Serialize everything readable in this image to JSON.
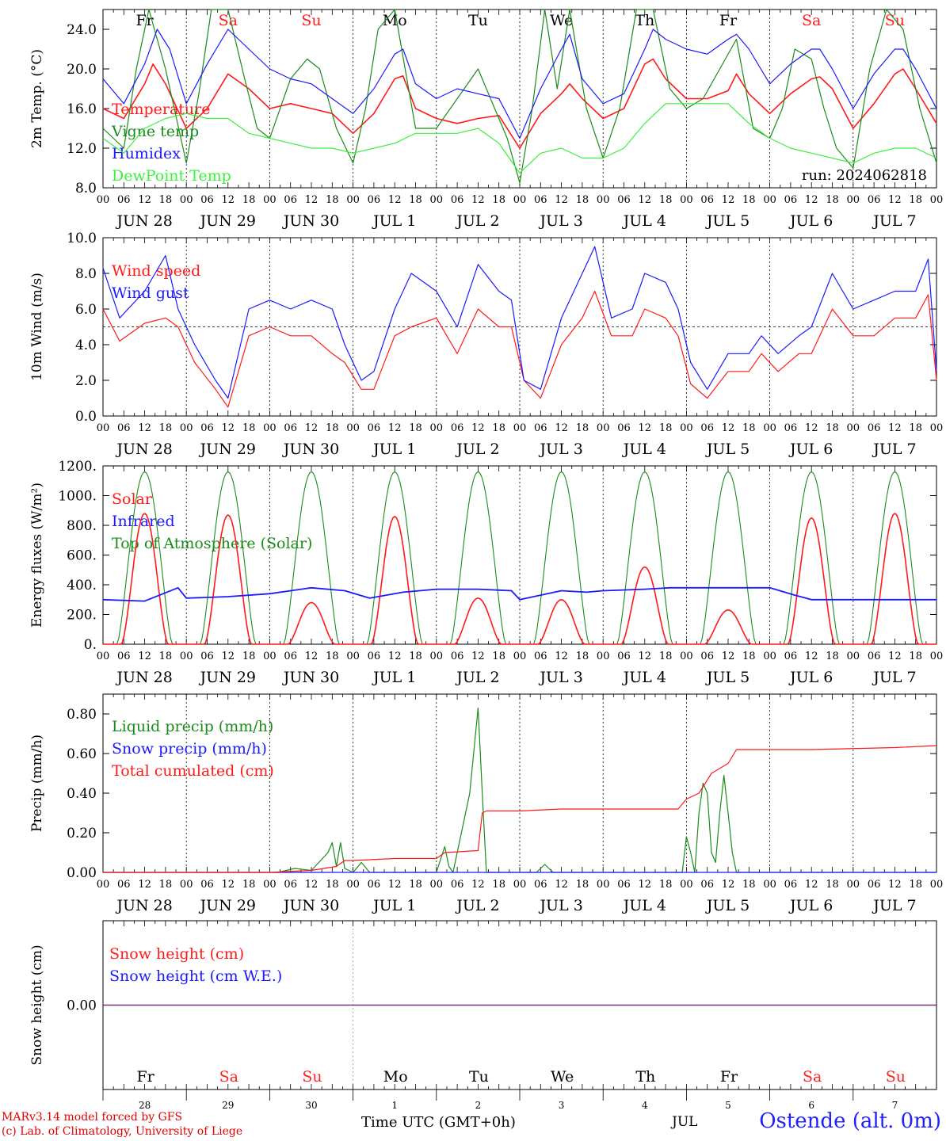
{
  "footer": {
    "credit_line1": "MARv3.14 model forced by GFS",
    "credit_line2": "(c) Lab. of Climatology, University of Liege",
    "time_label": "Time UTC (GMT+0h)",
    "month_label": "JUL",
    "station": "Ostende (alt. 0m)"
  },
  "axis_common": {
    "hour_ticks": [
      "00",
      "06",
      "12",
      "18"
    ],
    "hour_end": "00",
    "date_labels": [
      "JUN 28",
      "JUN 29",
      "JUN 30",
      "JUL  1",
      "JUL  2",
      "JUL  3",
      "JUL  4",
      "JUL  5",
      "JUL  6",
      "JUL  7"
    ],
    "weekdays": [
      "Fr",
      "Sa",
      "Su",
      "Mo",
      "Tu",
      "We",
      "Th",
      "Fr",
      "Sa",
      "Su"
    ],
    "weekend_color": "#ff2020",
    "weekday_color": "#000000",
    "weekend_days": [
      "Sa",
      "Su"
    ]
  },
  "bottom_axis": {
    "day_numbers": [
      "28",
      "29",
      "30",
      "1",
      "2",
      "3",
      "4",
      "5",
      "6",
      "7"
    ]
  },
  "chart_data": [
    {
      "type": "line",
      "ylabel": "2m Temp. (°C)",
      "ylim": [
        8,
        26
      ],
      "yticks": [
        "8.0",
        "12.0",
        "16.0",
        "20.0",
        "24.0"
      ],
      "xrange_days": [
        0,
        10
      ],
      "annotation": "run: 2024062818",
      "legend_placement": "top-left",
      "series": [
        {
          "name": "Temperature",
          "color": "#ff1a1a",
          "x": [
            0,
            0.25,
            0.5,
            0.6,
            0.75,
            1,
            1.25,
            1.5,
            1.75,
            2,
            2.25,
            2.5,
            2.75,
            3,
            3.25,
            3.5,
            3.6,
            3.75,
            4,
            4.25,
            4.5,
            4.75,
            5,
            5.25,
            5.5,
            5.6,
            5.75,
            6,
            6.25,
            6.5,
            6.6,
            6.75,
            7,
            7.25,
            7.5,
            7.6,
            7.75,
            8,
            8.25,
            8.5,
            8.6,
            8.75,
            9,
            9.25,
            9.5,
            9.6,
            9.75,
            10
          ],
          "y": [
            16.0,
            15.0,
            18.5,
            20.5,
            18.5,
            14.0,
            16.0,
            19.5,
            18.0,
            16.0,
            16.5,
            16.0,
            15.5,
            13.5,
            15.5,
            19.0,
            19.3,
            16.0,
            15.0,
            14.5,
            15.0,
            15.3,
            12.0,
            15.5,
            17.5,
            18.5,
            17.0,
            15.0,
            16.0,
            20.5,
            21.0,
            19.0,
            17.0,
            17.0,
            17.8,
            19.5,
            17.5,
            15.5,
            17.5,
            19.0,
            19.2,
            18.0,
            14.0,
            16.5,
            19.5,
            20.0,
            18.0,
            14.5
          ]
        },
        {
          "name": "Vigne temp",
          "color": "#1a8c1a",
          "x": [
            0,
            0.25,
            0.4,
            0.55,
            0.75,
            1,
            1.15,
            1.3,
            1.5,
            1.7,
            1.85,
            2,
            2.25,
            2.45,
            2.6,
            2.8,
            3,
            3.15,
            3.3,
            3.5,
            3.75,
            4,
            4.25,
            4.5,
            4.7,
            4.85,
            5,
            5.15,
            5.3,
            5.45,
            5.6,
            5.8,
            6,
            6.2,
            6.4,
            6.6,
            6.8,
            7,
            7.2,
            7.4,
            7.6,
            7.8,
            8,
            8.15,
            8.3,
            8.5,
            8.65,
            8.8,
            9,
            9.2,
            9.4,
            9.6,
            9.8,
            10
          ],
          "y": [
            14.0,
            12.0,
            20.0,
            27.0,
            20.0,
            10.5,
            17.5,
            27.0,
            27.0,
            19.0,
            14.0,
            13.0,
            19.0,
            21.0,
            20.0,
            14.0,
            10.5,
            16.0,
            24.0,
            28.0,
            14.0,
            14.0,
            17.0,
            20.0,
            16.0,
            13.0,
            8.5,
            16.0,
            27.0,
            18.0,
            28.0,
            16.0,
            11.0,
            16.0,
            27.0,
            28.0,
            18.0,
            16.0,
            17.0,
            20.0,
            23.0,
            14.0,
            13.0,
            16.0,
            22.0,
            21.0,
            16.0,
            12.0,
            10.0,
            20.0,
            27.0,
            24.0,
            16.0,
            10.5
          ]
        },
        {
          "name": "Humidex",
          "color": "#1a1aff",
          "x": [
            0,
            0.25,
            0.5,
            0.65,
            0.8,
            1,
            1.25,
            1.5,
            1.75,
            2,
            2.25,
            2.5,
            2.75,
            3,
            3.25,
            3.5,
            3.6,
            3.75,
            4,
            4.25,
            4.5,
            4.75,
            5,
            5.25,
            5.5,
            5.6,
            5.75,
            6,
            6.25,
            6.5,
            6.6,
            6.75,
            7,
            7.25,
            7.5,
            7.6,
            7.75,
            8,
            8.25,
            8.5,
            8.6,
            8.75,
            9,
            9.25,
            9.5,
            9.6,
            9.75,
            10
          ],
          "y": [
            19.0,
            16.5,
            20.5,
            24.0,
            22.0,
            16.5,
            20.5,
            24.0,
            22.0,
            20.0,
            19.0,
            18.5,
            17.0,
            15.5,
            18.0,
            21.5,
            22.0,
            18.5,
            17.0,
            18.0,
            17.5,
            17.0,
            13.0,
            18.0,
            22.0,
            23.5,
            19.0,
            16.5,
            17.5,
            22.0,
            24.0,
            23.0,
            22.0,
            21.5,
            23.0,
            23.5,
            22.0,
            18.5,
            20.5,
            22.0,
            22.0,
            20.0,
            16.0,
            19.5,
            22.0,
            22.0,
            20.0,
            16.0
          ]
        },
        {
          "name": "DewPoint Temp",
          "color": "#3cf03c",
          "x": [
            0,
            0.25,
            0.5,
            0.75,
            1,
            1.25,
            1.5,
            1.75,
            2,
            2.25,
            2.5,
            2.75,
            3,
            3.25,
            3.5,
            3.75,
            4,
            4.25,
            4.5,
            4.75,
            5,
            5.25,
            5.5,
            5.75,
            6,
            6.25,
            6.5,
            6.75,
            7,
            7.25,
            7.5,
            7.75,
            8,
            8.25,
            8.5,
            8.75,
            9,
            9.25,
            9.5,
            9.75,
            10
          ],
          "y": [
            13.0,
            11.5,
            14.0,
            15.0,
            15.5,
            15.0,
            15.0,
            13.5,
            13.0,
            12.5,
            12.0,
            12.0,
            11.5,
            12.0,
            12.5,
            13.5,
            13.5,
            13.5,
            14.0,
            12.5,
            9.5,
            11.5,
            12.0,
            11.0,
            11.0,
            12.0,
            14.5,
            16.5,
            16.5,
            16.5,
            16.5,
            14.5,
            13.0,
            12.0,
            11.5,
            11.0,
            10.5,
            11.5,
            12.0,
            12.0,
            11.0
          ]
        }
      ]
    },
    {
      "type": "line",
      "ylabel": "10m Wind (m/s)",
      "ylim": [
        0,
        10
      ],
      "yticks": [
        "0.0",
        "2.0",
        "4.0",
        "6.0",
        "8.0",
        "10.0"
      ],
      "reference_line": 5.0,
      "legend_placement": "top-left",
      "series": [
        {
          "name": "Wind speed",
          "color": "#ff1a1a",
          "x": [
            0,
            0.2,
            0.5,
            0.75,
            0.9,
            1.1,
            1.35,
            1.5,
            1.75,
            2,
            2.25,
            2.5,
            2.75,
            2.9,
            3.1,
            3.25,
            3.5,
            3.7,
            4,
            4.25,
            4.5,
            4.75,
            4.9,
            5.05,
            5.25,
            5.5,
            5.75,
            5.9,
            6.1,
            6.35,
            6.5,
            6.75,
            6.9,
            7.05,
            7.25,
            7.5,
            7.75,
            7.9,
            8.1,
            8.35,
            8.5,
            8.75,
            9,
            9.25,
            9.5,
            9.75,
            9.9,
            10
          ],
          "y": [
            6.0,
            4.2,
            5.2,
            5.5,
            5.0,
            3.0,
            1.5,
            0.5,
            4.5,
            5.0,
            4.5,
            4.5,
            3.5,
            3.0,
            1.5,
            1.5,
            4.5,
            5.0,
            5.5,
            3.5,
            6.0,
            5.0,
            5.0,
            2.0,
            1.0,
            4.0,
            5.5,
            7.0,
            4.5,
            4.5,
            6.0,
            5.5,
            4.5,
            1.8,
            1.0,
            2.5,
            2.5,
            3.5,
            2.5,
            3.5,
            3.5,
            6.0,
            4.5,
            4.5,
            5.5,
            5.5,
            6.8,
            2.0
          ]
        },
        {
          "name": "Wind gust",
          "color": "#1a1aff",
          "x": [
            0,
            0.2,
            0.5,
            0.75,
            0.9,
            1.1,
            1.35,
            1.5,
            1.75,
            2,
            2.25,
            2.5,
            2.75,
            2.9,
            3.1,
            3.25,
            3.5,
            3.7,
            4,
            4.25,
            4.5,
            4.75,
            4.9,
            5.05,
            5.25,
            5.5,
            5.75,
            5.9,
            6.1,
            6.35,
            6.5,
            6.75,
            6.9,
            7.05,
            7.25,
            7.5,
            7.75,
            7.9,
            8.1,
            8.35,
            8.5,
            8.75,
            9,
            9.25,
            9.5,
            9.75,
            9.9,
            10
          ],
          "y": [
            8.3,
            5.5,
            7.0,
            9.0,
            6.0,
            4.0,
            2.0,
            1.0,
            6.0,
            6.5,
            6.0,
            6.5,
            6.0,
            4.0,
            2.0,
            2.5,
            6.0,
            8.0,
            7.0,
            5.0,
            8.5,
            7.0,
            6.5,
            2.0,
            1.5,
            5.5,
            8.0,
            9.5,
            5.5,
            6.0,
            8.0,
            7.5,
            6.0,
            3.0,
            1.5,
            3.5,
            3.5,
            4.5,
            3.5,
            4.5,
            5.0,
            8.0,
            6.0,
            6.5,
            7.0,
            7.0,
            8.8,
            2.5
          ]
        }
      ]
    },
    {
      "type": "line",
      "ylabel": "Energy fluxes (W/m²)",
      "ylim": [
        0,
        1200
      ],
      "yticks": [
        "0.",
        "200.",
        "400.",
        "600.",
        "800.",
        "1000.",
        "1200."
      ],
      "legend_placement": "top-left",
      "toa_peak": 1160,
      "solar_peaks": [
        880,
        870,
        280,
        860,
        310,
        300,
        520,
        230,
        850,
        880
      ],
      "series": [
        {
          "name": "Solar",
          "color": "#ff1a1a"
        },
        {
          "name": "Infrared",
          "color": "#1a1aff",
          "x": [
            0,
            0.5,
            0.9,
            1.0,
            1.5,
            2.0,
            2.5,
            2.9,
            3.2,
            3.6,
            4.0,
            4.5,
            4.9,
            5.0,
            5.5,
            5.8,
            6.0,
            6.5,
            6.8,
            7.0,
            7.5,
            8.0,
            8.3,
            8.5,
            9.0,
            9.5,
            10.0
          ],
          "y": [
            300,
            290,
            380,
            310,
            320,
            340,
            380,
            360,
            310,
            350,
            370,
            370,
            360,
            300,
            360,
            350,
            360,
            370,
            380,
            380,
            380,
            380,
            330,
            300,
            300,
            300,
            300
          ]
        },
        {
          "name": "Top of Atmosphere (Solar)",
          "color": "#1a8c1a"
        }
      ]
    },
    {
      "type": "line",
      "ylabel": "Precip (mm/h)",
      "ylim": [
        0,
        0.9
      ],
      "yticks": [
        "0.00",
        "0.20",
        "0.40",
        "0.60",
        "0.80"
      ],
      "legend_placement": "top-left",
      "series": [
        {
          "name": "Liquid precip (mm/h)",
          "color": "#1a8c1a",
          "x": [
            0,
            2.1,
            2.3,
            2.5,
            2.7,
            2.75,
            2.8,
            2.85,
            2.9,
            3.0,
            3.1,
            3.2,
            4.0,
            4.1,
            4.15,
            4.2,
            4.4,
            4.5,
            4.55,
            4.6,
            4.7,
            5.2,
            5.3,
            5.4,
            6.95,
            7.0,
            7.05,
            7.1,
            7.15,
            7.2,
            7.25,
            7.3,
            7.35,
            7.4,
            7.45,
            7.5,
            7.55,
            7.6,
            7.7,
            10.0
          ],
          "y": [
            0,
            0,
            0.02,
            0.01,
            0.1,
            0.15,
            0.03,
            0.15,
            0.02,
            0.0,
            0.05,
            0.0,
            0.0,
            0.13,
            0.03,
            0.0,
            0.4,
            0.83,
            0.4,
            0.0,
            0.0,
            0.0,
            0.04,
            0.0,
            0.0,
            0.18,
            0.1,
            0.0,
            0.3,
            0.45,
            0.4,
            0.1,
            0.05,
            0.3,
            0.49,
            0.3,
            0.1,
            0.0,
            0.0,
            0.0
          ]
        },
        {
          "name": "Snow precip (mm/h)",
          "color": "#1a1aff",
          "x": [
            0,
            10
          ],
          "y": [
            0,
            0
          ]
        },
        {
          "name": "Total cumulated (cm)",
          "color": "#ff1a1a",
          "x": [
            0,
            2.0,
            2.5,
            2.8,
            2.9,
            3.0,
            3.5,
            4.0,
            4.1,
            4.5,
            4.55,
            4.6,
            5.0,
            5.5,
            6.0,
            6.9,
            7.0,
            7.15,
            7.3,
            7.5,
            7.6,
            8.5,
            9.5,
            10.0
          ],
          "y": [
            0,
            0,
            0.01,
            0.03,
            0.06,
            0.06,
            0.07,
            0.07,
            0.1,
            0.11,
            0.3,
            0.31,
            0.31,
            0.32,
            0.32,
            0.32,
            0.37,
            0.4,
            0.5,
            0.55,
            0.62,
            0.62,
            0.63,
            0.64
          ]
        }
      ]
    },
    {
      "type": "line",
      "ylabel": "Snow height (cm)",
      "ylim": [
        -1,
        1
      ],
      "yticks": [
        "0.00"
      ],
      "legend_placement": "top-left",
      "series": [
        {
          "name": "Snow height (cm)",
          "color": "#ff1a1a",
          "x": [
            0,
            10
          ],
          "y": [
            0,
            0
          ]
        },
        {
          "name": "Snow height (cm W.E.)",
          "color": "#1a1aff",
          "x": [
            0,
            10
          ],
          "y": [
            0,
            0
          ]
        }
      ],
      "line_color": "#7a2a7a"
    }
  ]
}
